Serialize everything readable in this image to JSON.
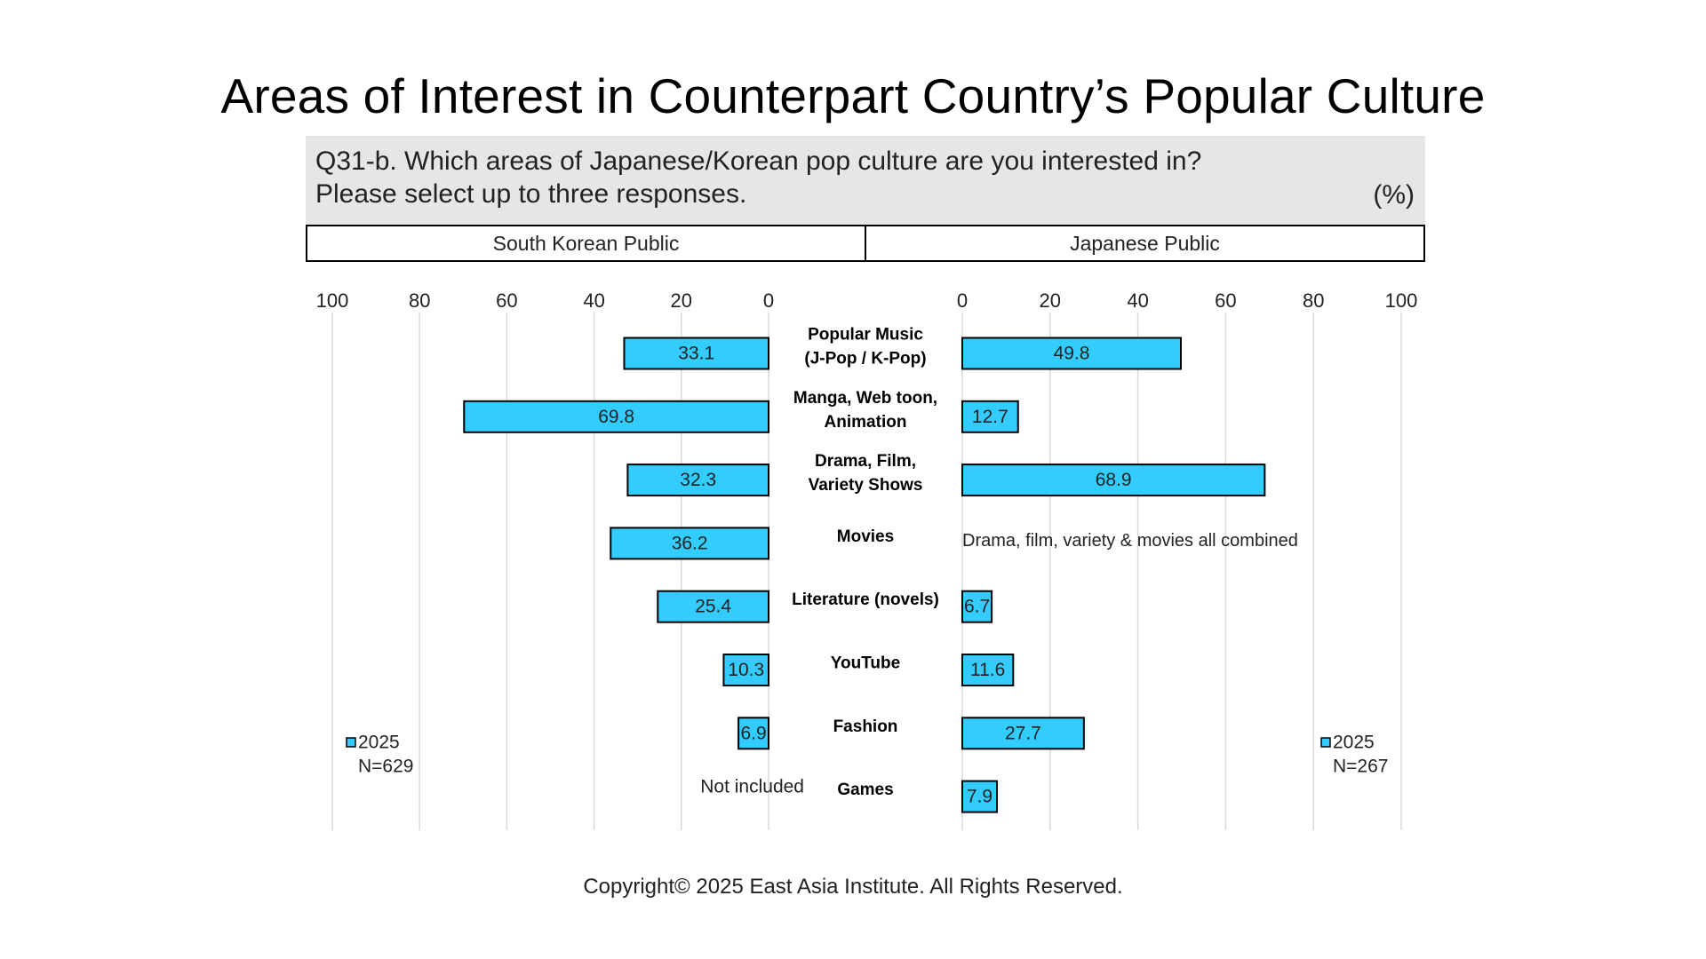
{
  "title": "Areas of Interest in Counterpart Country’s Popular Culture",
  "question": {
    "line1": "Q31-b. Which areas of Japanese/Korean pop culture are you interested in?",
    "line2": "Please select up to three responses.",
    "unit": "(%)"
  },
  "panels": {
    "left": "South Korean Public",
    "right": "Japanese Public"
  },
  "chart_data": {
    "type": "bar",
    "orientation": "horizontal-butterfly",
    "categories": [
      [
        "Popular Music",
        "(J-Pop / K-Pop)"
      ],
      [
        "Manga, Web toon,",
        "Animation"
      ],
      [
        "Drama, Film,",
        "Variety Shows"
      ],
      [
        "Movies"
      ],
      [
        "Literature (novels)"
      ],
      [
        "YouTube"
      ],
      [
        "Fashion"
      ],
      [
        "Games"
      ]
    ],
    "xlim": [
      0,
      100
    ],
    "ticks": [
      0,
      20,
      40,
      60,
      80,
      100
    ],
    "grid": true,
    "bar_color": "#33ccff",
    "series": [
      {
        "name": "2025",
        "side": "left",
        "legend_label": "2025",
        "legend_n": "N=629",
        "values": [
          33.1,
          69.8,
          32.3,
          36.2,
          25.4,
          10.3,
          6.9,
          null
        ]
      },
      {
        "name": "2025",
        "side": "right",
        "legend_label": "2025",
        "legend_n": "N=267",
        "values": [
          49.8,
          12.7,
          68.9,
          null,
          6.7,
          11.6,
          27.7,
          7.9
        ]
      }
    ],
    "annotations": {
      "left_games": "Not included",
      "right_movies": "Drama, film, variety & movies all combined"
    }
  },
  "copyright": "Copyright© 2025 East Asia Institute. All Rights Reserved."
}
